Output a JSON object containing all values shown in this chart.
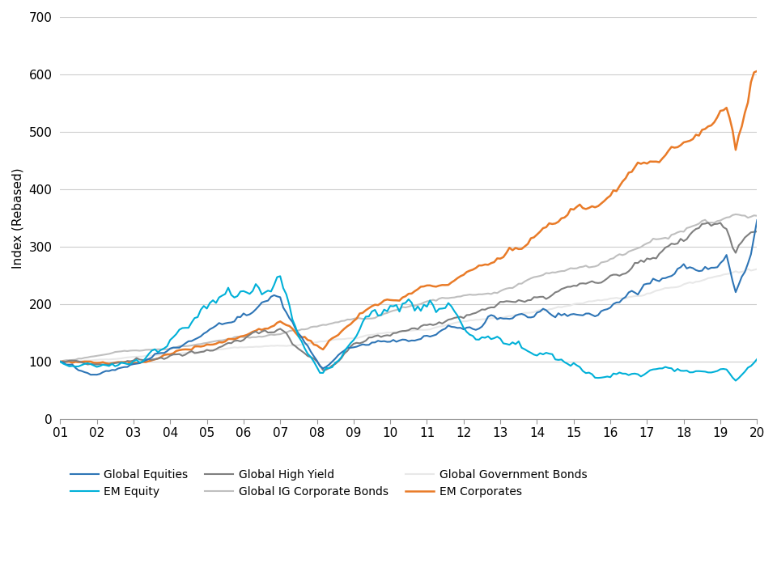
{
  "ylabel": "Index (Rebased)",
  "xlim": [
    0,
    228
  ],
  "ylim": [
    0,
    700
  ],
  "yticks": [
    0,
    100,
    200,
    300,
    400,
    500,
    600,
    700
  ],
  "xtick_labels": [
    "01",
    "02",
    "03",
    "04",
    "05",
    "06",
    "07",
    "08",
    "09",
    "10",
    "11",
    "12",
    "13",
    "14",
    "15",
    "16",
    "17",
    "18",
    "19",
    "20"
  ],
  "series": {
    "Global Equities": {
      "color": "#2E75B6",
      "linewidth": 1.5,
      "zorder": 4
    },
    "EM Equity": {
      "color": "#00B0D8",
      "linewidth": 1.5,
      "zorder": 5
    },
    "Global High Yield": {
      "color": "#7F7F7F",
      "linewidth": 1.5,
      "zorder": 3
    },
    "Global IG Corporate Bonds": {
      "color": "#BFBFBF",
      "linewidth": 1.5,
      "zorder": 2
    },
    "Global Government Bonds": {
      "color": "#E8E8E8",
      "linewidth": 1.5,
      "zorder": 1
    },
    "EM Corporates": {
      "color": "#E97B28",
      "linewidth": 1.8,
      "zorder": 3
    }
  },
  "legend_order": [
    "Global Equities",
    "EM Equity",
    "Global High Yield",
    "Global IG Corporate Bonds",
    "Global Government Bonds",
    "EM Corporates"
  ],
  "background_color": "#ffffff",
  "grid_color": "#cccccc",
  "legend_fontsize": 10,
  "axis_fontsize": 11
}
